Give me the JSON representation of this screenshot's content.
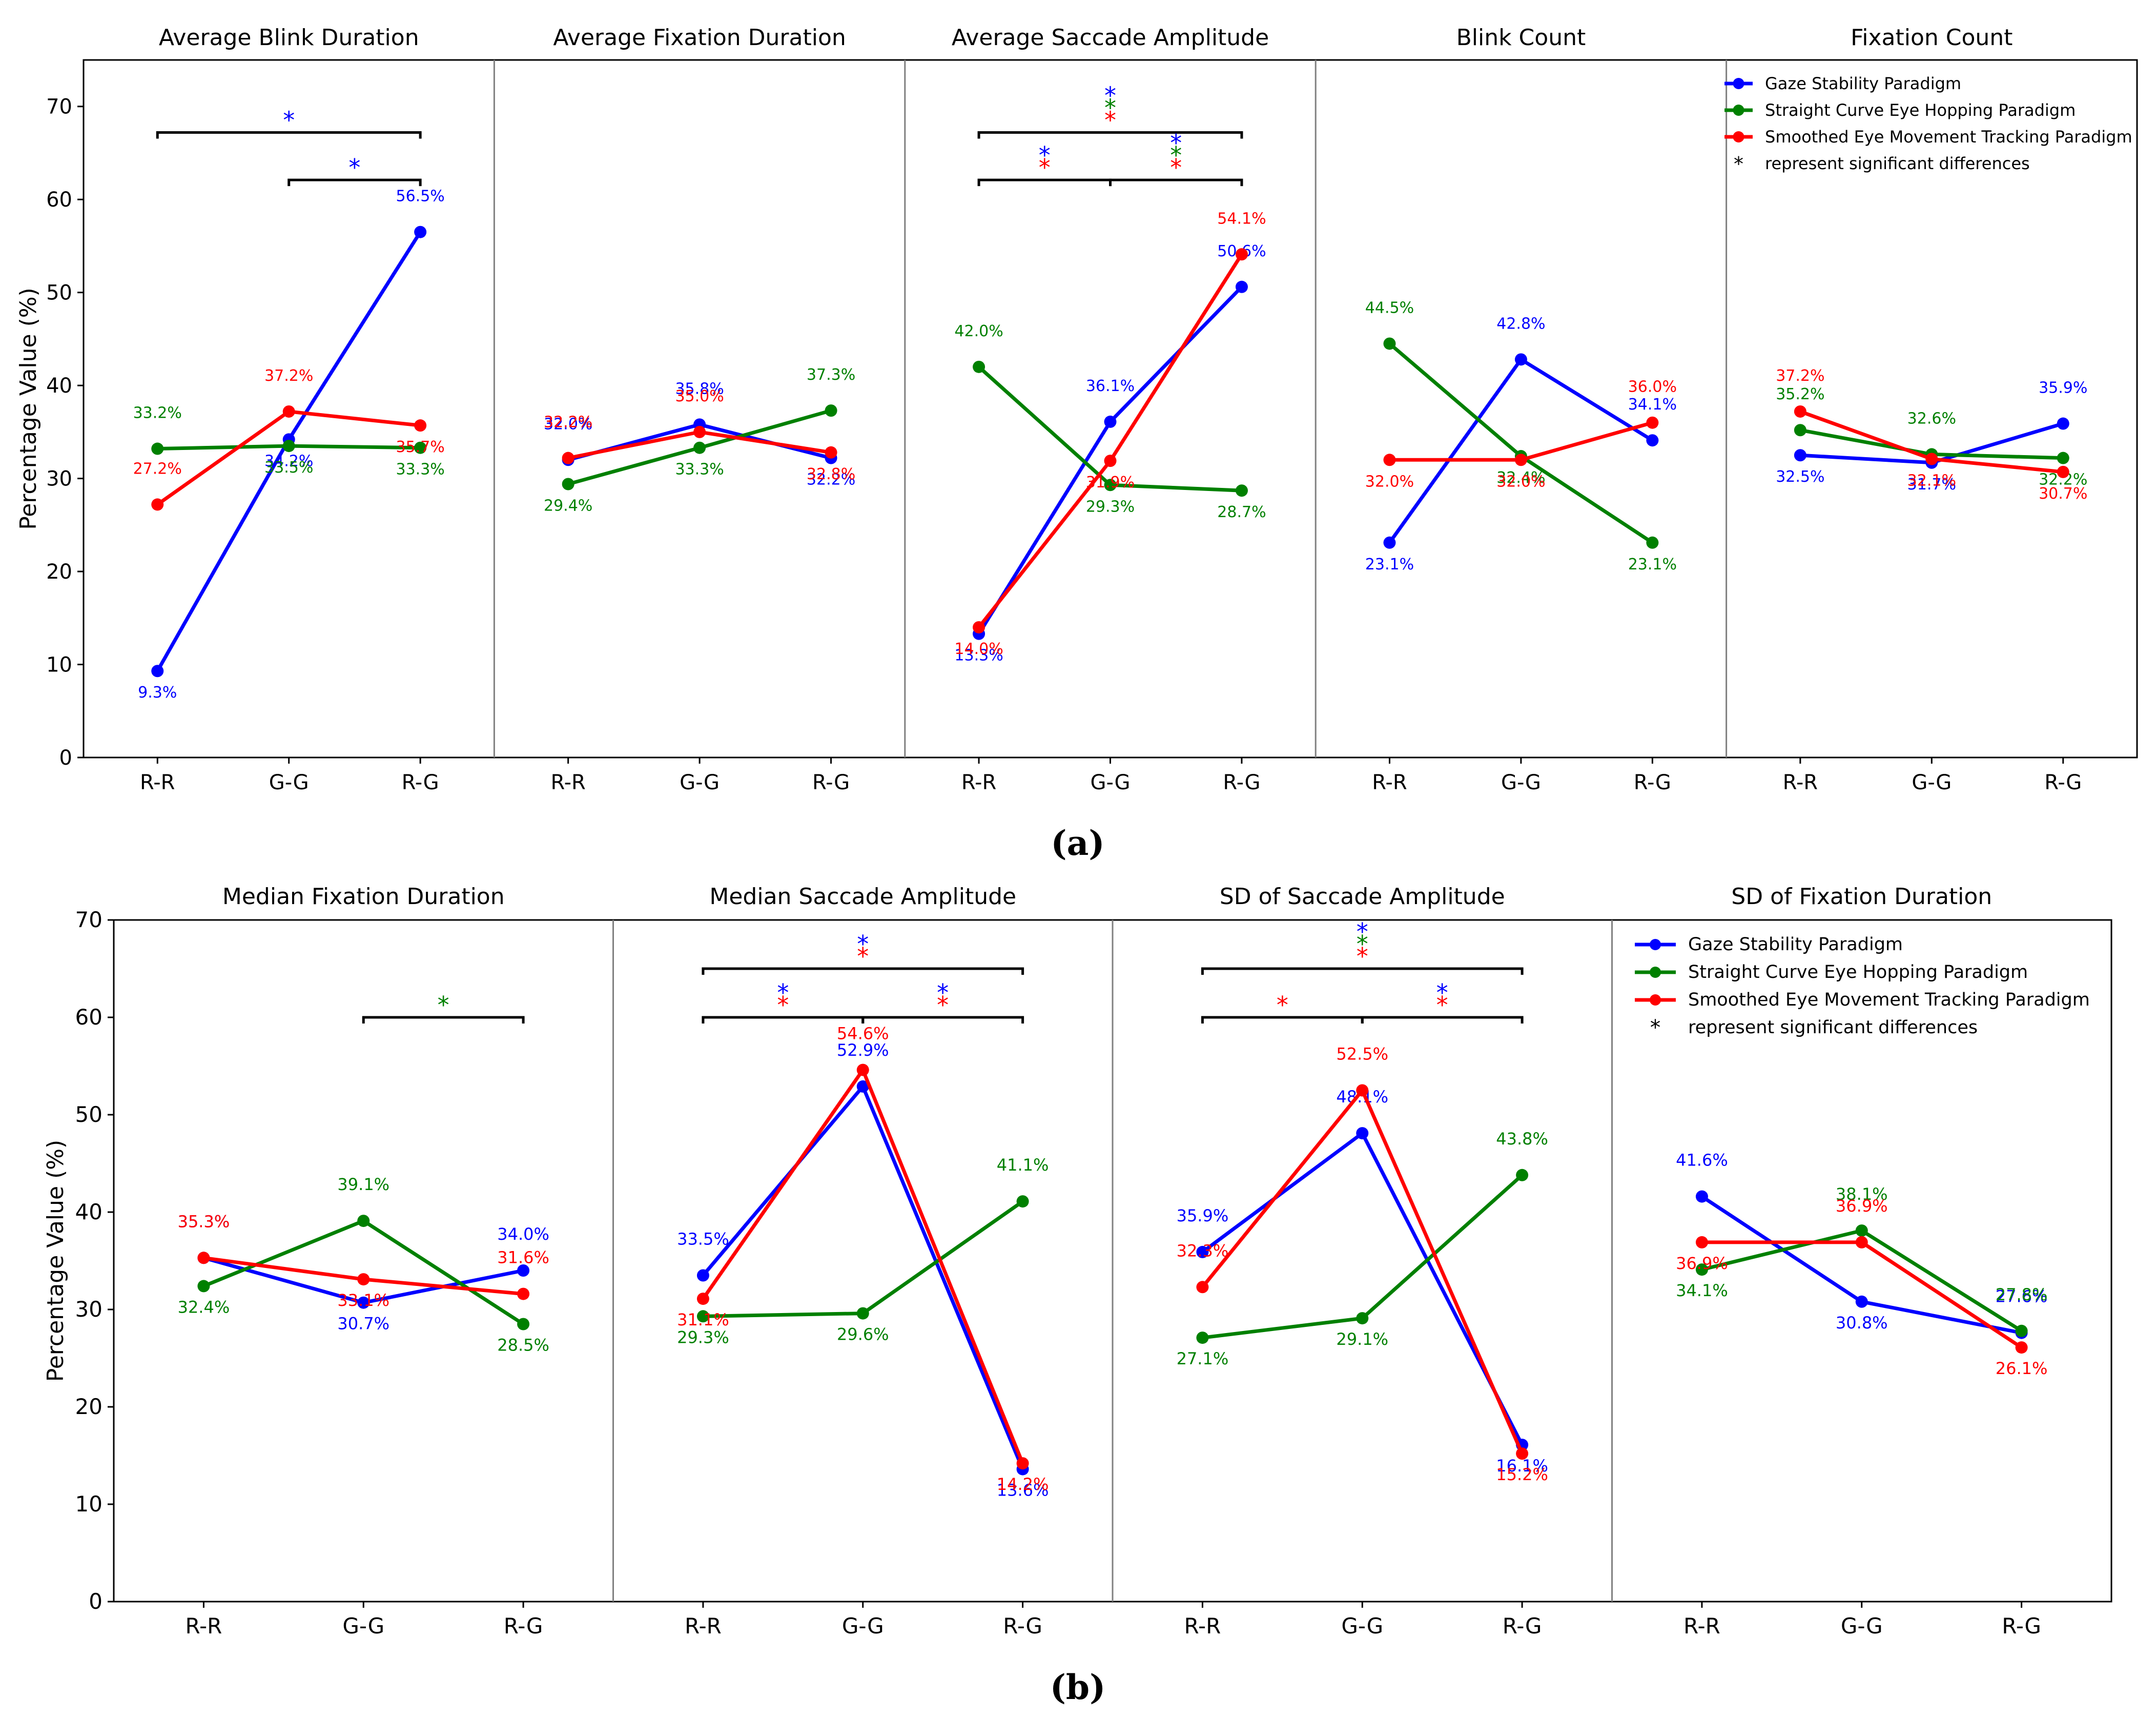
{
  "colors": {
    "gaze": "#0000ff",
    "straight": "#008000",
    "smoothed": "#ff0000",
    "axis": "#000000",
    "divider": "#808080"
  },
  "captions": {
    "a": "(a)",
    "b": "(b)"
  },
  "chart_data": [
    {
      "type": "line",
      "panel": "a",
      "ylabel": "Percentage Value (%)",
      "ylim": [
        0,
        75
      ],
      "yticks": [
        "0",
        "10",
        "20",
        "30",
        "40",
        "50",
        "60",
        "70"
      ],
      "yticks_values": [
        0,
        10,
        20,
        30,
        40,
        50,
        60,
        70
      ],
      "categories": [
        "R-R",
        "G-G",
        "R-G"
      ],
      "legend": {
        "placement": "top-right",
        "entries": [
          {
            "key": "gaze",
            "label": "Gaze Stability Paradigm"
          },
          {
            "key": "straight",
            "label": "Straight Curve Eye Hopping Paradigm"
          },
          {
            "key": "smoothed",
            "label": "Smoothed Eye Movement Tracking Paradigm"
          }
        ],
        "note_symbol": "*",
        "note": "represent significant differences"
      },
      "subplots": [
        {
          "title": "Average Blink Duration",
          "series": [
            {
              "key": "gaze",
              "values": [
                9.3,
                34.2,
                56.5
              ],
              "labels": [
                "9.3%",
                "34.2%",
                "56.5%"
              ]
            },
            {
              "key": "straight",
              "values": [
                33.2,
                33.5,
                33.3
              ],
              "labels": [
                "33.2%",
                "33.5%",
                "33.3%"
              ]
            },
            {
              "key": "smoothed",
              "values": [
                27.2,
                37.2,
                35.7
              ],
              "labels": [
                "27.2%",
                "37.2%",
                "35.7%"
              ]
            }
          ],
          "brackets": [
            {
              "from": 0,
              "to": 2,
              "y": 67.2,
              "stars": [
                "gaze"
              ]
            },
            {
              "from": 1,
              "to": 2,
              "y": 62.1,
              "stars": [
                "gaze"
              ]
            }
          ]
        },
        {
          "title": "Average Fixation Duration",
          "series": [
            {
              "key": "gaze",
              "values": [
                32.0,
                35.8,
                32.2
              ],
              "labels": [
                "32.0%",
                "35.8%",
                "32.2%"
              ]
            },
            {
              "key": "straight",
              "values": [
                29.4,
                33.3,
                37.3
              ],
              "labels": [
                "29.4%",
                "33.3%",
                "37.3%"
              ]
            },
            {
              "key": "smoothed",
              "values": [
                32.2,
                35.0,
                32.8
              ],
              "labels": [
                "32.2%",
                "35.0%",
                "32.8%"
              ]
            }
          ],
          "brackets": []
        },
        {
          "title": "Average Saccade Amplitude",
          "series": [
            {
              "key": "gaze",
              "values": [
                13.3,
                36.1,
                50.6
              ],
              "labels": [
                "13.3%",
                "36.1%",
                "50.6%"
              ]
            },
            {
              "key": "straight",
              "values": [
                42.0,
                29.3,
                28.7
              ],
              "labels": [
                "42.0%",
                "29.3%",
                "28.7%"
              ]
            },
            {
              "key": "smoothed",
              "values": [
                14.0,
                31.9,
                54.1
              ],
              "labels": [
                "14.0%",
                "31.9%",
                "54.1%"
              ]
            }
          ],
          "brackets": [
            {
              "from": 0,
              "to": 2,
              "y": 67.2,
              "stars": [
                "gaze",
                "straight",
                "smoothed"
              ]
            },
            {
              "from": 0,
              "to": 1,
              "y": 62.1,
              "stars": [
                "gaze",
                "smoothed"
              ]
            },
            {
              "from": 1,
              "to": 2,
              "y": 62.1,
              "stars": [
                "gaze",
                "straight",
                "smoothed"
              ]
            }
          ]
        },
        {
          "title": "Blink Count",
          "series": [
            {
              "key": "gaze",
              "values": [
                23.1,
                42.8,
                34.1
              ],
              "labels": [
                "23.1%",
                "42.8%",
                "34.1%"
              ]
            },
            {
              "key": "straight",
              "values": [
                44.5,
                32.4,
                23.1
              ],
              "labels": [
                "44.5%",
                "32.4%",
                "23.1%"
              ]
            },
            {
              "key": "smoothed",
              "values": [
                32.0,
                32.0,
                36.0
              ],
              "labels": [
                "32.0%",
                "32.0%",
                "36.0%"
              ]
            }
          ],
          "brackets": []
        },
        {
          "title": "Fixation Count",
          "series": [
            {
              "key": "gaze",
              "values": [
                32.5,
                31.7,
                35.9
              ],
              "labels": [
                "32.5%",
                "31.7%",
                "35.9%"
              ]
            },
            {
              "key": "straight",
              "values": [
                35.2,
                32.6,
                32.2
              ],
              "labels": [
                "35.2%",
                "32.6%",
                "32.2%"
              ]
            },
            {
              "key": "smoothed",
              "values": [
                37.2,
                32.1,
                30.7
              ],
              "labels": [
                "37.2%",
                "32.1%",
                "30.7%"
              ]
            }
          ],
          "brackets": [],
          "legend": true
        }
      ]
    },
    {
      "type": "line",
      "panel": "b",
      "ylabel": "Percentage Value (%)",
      "ylim": [
        0,
        70
      ],
      "yticks": [
        "0",
        "10",
        "20",
        "30",
        "40",
        "50",
        "60",
        "70"
      ],
      "yticks_values": [
        0,
        10,
        20,
        30,
        40,
        50,
        60,
        70
      ],
      "categories": [
        "R-R",
        "G-G",
        "R-G"
      ],
      "legend": {
        "placement": "top-right",
        "entries": [
          {
            "key": "gaze",
            "label": "Gaze Stability Paradigm"
          },
          {
            "key": "straight",
            "label": "Straight Curve Eye Hopping Paradigm"
          },
          {
            "key": "smoothed",
            "label": "Smoothed Eye Movement Tracking Paradigm"
          }
        ],
        "note_symbol": "*",
        "note": "represent significant differences"
      },
      "subplots": [
        {
          "title": "Median Fixation Duration",
          "series": [
            {
              "key": "gaze",
              "values": [
                35.3,
                30.7,
                34.0
              ],
              "labels": [
                "35.3%",
                "30.7%",
                "34.0%"
              ]
            },
            {
              "key": "straight",
              "values": [
                32.4,
                39.1,
                28.5
              ],
              "labels": [
                "32.4%",
                "39.1%",
                "28.5%"
              ]
            },
            {
              "key": "smoothed",
              "values": [
                35.3,
                33.1,
                31.6
              ],
              "labels": [
                "35.3%",
                "33.1%",
                "31.6%"
              ]
            }
          ],
          "brackets": [
            {
              "from": 1,
              "to": 2,
              "y": 60,
              "stars": [
                "straight"
              ]
            }
          ]
        },
        {
          "title": "Median Saccade Amplitude",
          "series": [
            {
              "key": "gaze",
              "values": [
                33.5,
                52.9,
                13.6
              ],
              "labels": [
                "33.5%",
                "52.9%",
                "13.6%"
              ]
            },
            {
              "key": "straight",
              "values": [
                29.3,
                29.6,
                41.1
              ],
              "labels": [
                "29.3%",
                "29.6%",
                "41.1%"
              ]
            },
            {
              "key": "smoothed",
              "values": [
                31.1,
                54.6,
                14.2
              ],
              "labels": [
                "31.1%",
                "54.6%",
                "14.2%"
              ]
            }
          ],
          "brackets": [
            {
              "from": 0,
              "to": 2,
              "y": 65,
              "stars": [
                "gaze",
                "smoothed"
              ]
            },
            {
              "from": 0,
              "to": 1,
              "y": 60,
              "stars": [
                "gaze",
                "smoothed"
              ]
            },
            {
              "from": 1,
              "to": 2,
              "y": 60,
              "stars": [
                "gaze",
                "smoothed"
              ]
            }
          ]
        },
        {
          "title": "SD of Saccade Amplitude",
          "series": [
            {
              "key": "gaze",
              "values": [
                35.9,
                48.1,
                16.1
              ],
              "labels": [
                "35.9%",
                "48.1%",
                "16.1%"
              ]
            },
            {
              "key": "straight",
              "values": [
                27.1,
                29.1,
                43.8
              ],
              "labels": [
                "27.1%",
                "29.1%",
                "43.8%"
              ]
            },
            {
              "key": "smoothed",
              "values": [
                32.3,
                52.5,
                15.2
              ],
              "labels": [
                "32.3%",
                "52.5%",
                "15.2%"
              ]
            }
          ],
          "brackets": [
            {
              "from": 0,
              "to": 2,
              "y": 65,
              "stars": [
                "gaze",
                "straight",
                "smoothed"
              ]
            },
            {
              "from": 0,
              "to": 1,
              "y": 60,
              "stars": [
                "smoothed"
              ]
            },
            {
              "from": 1,
              "to": 2,
              "y": 60,
              "stars": [
                "gaze",
                "smoothed"
              ]
            }
          ]
        },
        {
          "title": "SD of Fixation Duration",
          "series": [
            {
              "key": "gaze",
              "values": [
                41.6,
                30.8,
                27.6
              ],
              "labels": [
                "41.6%",
                "30.8%",
                "27.6%"
              ]
            },
            {
              "key": "straight",
              "values": [
                34.1,
                38.1,
                27.8
              ],
              "labels": [
                "34.1%",
                "38.1%",
                "27.8%"
              ]
            },
            {
              "key": "smoothed",
              "values": [
                36.9,
                36.9,
                26.1
              ],
              "labels": [
                "36.9%",
                "36.9%",
                "26.1%"
              ]
            }
          ],
          "brackets": [],
          "legend": true
        }
      ]
    }
  ]
}
